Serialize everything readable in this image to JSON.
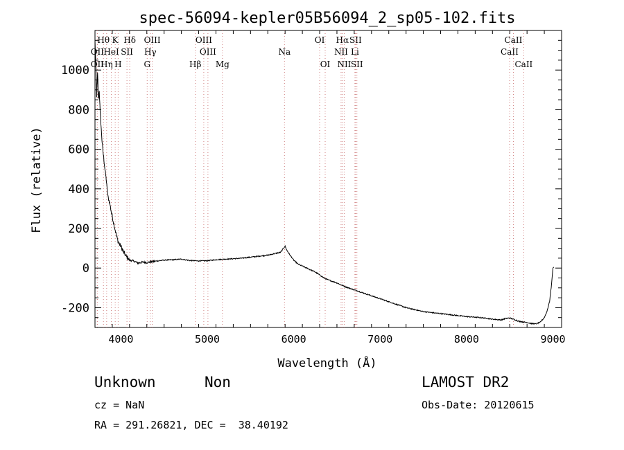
{
  "chart_data": {
    "type": "line",
    "title": "spec-56094-kepler05B56094_2_sp05-102.fits",
    "xlabel": "Wavelength (Å)",
    "ylabel": "Flux (relative)",
    "xlim": [
      3700,
      9100
    ],
    "ylim": [
      -300,
      1200
    ],
    "xticks": [
      4000,
      5000,
      6000,
      7000,
      8000,
      9000
    ],
    "yticks": [
      -200,
      0,
      200,
      400,
      600,
      800,
      1000
    ],
    "grid": false,
    "series": [
      {
        "x": [
          3700,
          3710,
          3720,
          3730,
          3740,
          3750,
          3760,
          3770,
          3780,
          3790,
          3800,
          3810,
          3820,
          3830,
          3840,
          3850,
          3870,
          3890,
          3910,
          3930,
          3950,
          3970,
          4000,
          4030,
          4060,
          4100,
          4150,
          4200,
          4250,
          4300,
          4400,
          4500,
          4600,
          4700,
          4800,
          4900,
          5000,
          5100,
          5200,
          5300,
          5400,
          5500,
          5600,
          5700,
          5800,
          5850,
          5880,
          5900,
          5920,
          5950,
          6000,
          6050,
          6100,
          6150,
          6200,
          6250,
          6300,
          6350,
          6400,
          6500,
          6600,
          6700,
          6800,
          6900,
          7000,
          7100,
          7200,
          7300,
          7400,
          7500,
          7600,
          7700,
          7800,
          7900,
          8000,
          8100,
          8200,
          8300,
          8400,
          8450,
          8500,
          8550,
          8600,
          8650,
          8700,
          8750,
          8800,
          8850,
          8900,
          8930,
          8960,
          8980,
          9000,
          9010
        ],
        "y": [
          1150,
          1020,
          870,
          980,
          850,
          900,
          780,
          720,
          650,
          600,
          560,
          520,
          480,
          450,
          400,
          360,
          330,
          280,
          240,
          200,
          160,
          130,
          110,
          80,
          60,
          40,
          35,
          25,
          30,
          28,
          35,
          40,
          42,
          45,
          38,
          36,
          37,
          42,
          45,
          47,
          50,
          55,
          60,
          65,
          75,
          80,
          100,
          110,
          90,
          70,
          40,
          20,
          10,
          0,
          -10,
          -20,
          -35,
          -50,
          -60,
          -75,
          -95,
          -110,
          -125,
          -140,
          -155,
          -170,
          -185,
          -200,
          -210,
          -220,
          -225,
          -230,
          -235,
          -240,
          -245,
          -248,
          -252,
          -258,
          -262,
          -255,
          -252,
          -260,
          -268,
          -272,
          -275,
          -280,
          -282,
          -275,
          -250,
          -220,
          -170,
          -100,
          0,
          5
        ]
      }
    ],
    "line_markers": [
      {
        "label": "Hθ",
        "x": 3798,
        "row": 1
      },
      {
        "label": "K",
        "x": 3934,
        "row": 1
      },
      {
        "label": "Hδ",
        "x": 4102,
        "row": 1
      },
      {
        "label": "OIII",
        "x": 4363,
        "row": 1
      },
      {
        "label": "OIII",
        "x": 4959,
        "row": 1
      },
      {
        "label": "OI",
        "x": 6300,
        "row": 1
      },
      {
        "label": "Hα",
        "x": 6563,
        "row": 1
      },
      {
        "label": "SII",
        "x": 6716,
        "row": 1
      },
      {
        "label": "CaII",
        "x": 8542,
        "row": 1
      },
      {
        "label": "OII",
        "x": 3727,
        "row": 2
      },
      {
        "label": "HeI",
        "x": 3889,
        "row": 2
      },
      {
        "label": "SII",
        "x": 4070,
        "row": 2
      },
      {
        "label": "Hγ",
        "x": 4340,
        "row": 2
      },
      {
        "label": "OIII",
        "x": 5007,
        "row": 2
      },
      {
        "label": "NII",
        "x": 6548,
        "row": 2
      },
      {
        "label": "Li",
        "x": 6708,
        "row": 2
      },
      {
        "label": "CaII",
        "x": 8498,
        "row": 2
      },
      {
        "label": "OII",
        "x": 3727,
        "row": 3
      },
      {
        "label": "Hη",
        "x": 3835,
        "row": 3
      },
      {
        "label": "H",
        "x": 3968,
        "row": 3
      },
      {
        "label": "G",
        "x": 4304,
        "row": 3
      },
      {
        "label": "Hβ",
        "x": 4861,
        "row": 3
      },
      {
        "label": "Mg",
        "x": 5175,
        "row": 3
      },
      {
        "label": "Na",
        "x": 5893,
        "row": 2
      },
      {
        "label": "OI",
        "x": 6364,
        "row": 3
      },
      {
        "label": "NII",
        "x": 6584,
        "row": 3
      },
      {
        "label": "SII",
        "x": 6731,
        "row": 3
      },
      {
        "label": "CaII",
        "x": 8662,
        "row": 3
      }
    ],
    "marker_colors": {
      "spectrum": "#000000",
      "line_marker": "#d08080"
    }
  },
  "info": {
    "class": "Unknown",
    "subclass": "Non",
    "survey": "LAMOST DR2",
    "cz": "cz = NaN",
    "obs_date": "Obs-Date: 20120615",
    "coords": "RA = 291.26821, DEC =  38.40192"
  }
}
